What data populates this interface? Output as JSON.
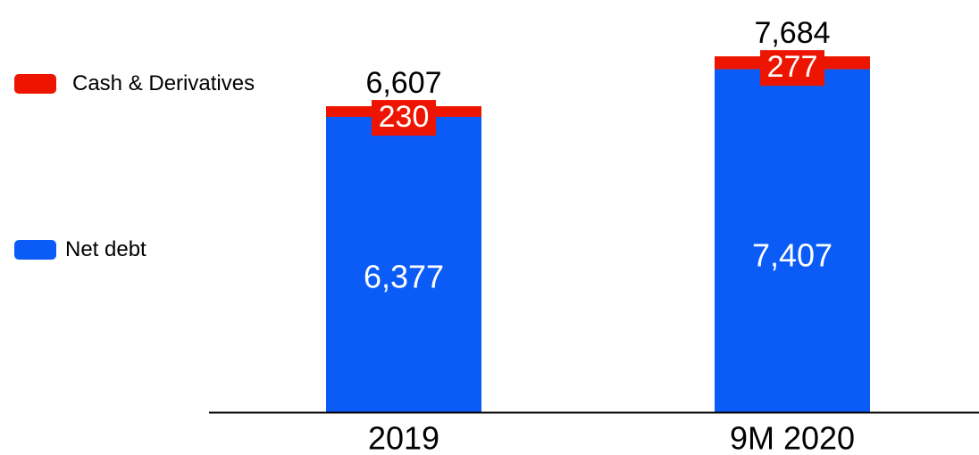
{
  "colors": {
    "cash": "#ee1500",
    "net_debt": "#0b5cf7",
    "axis": "#000000",
    "label_dark": "#000000",
    "label_light": "#ffffff"
  },
  "legend": {
    "cash_label": "Cash & Derivatives",
    "net_debt_label": "Net debt"
  },
  "chart_data": {
    "type": "bar",
    "stacked": true,
    "categories": [
      "2019",
      "9M 2020"
    ],
    "series": [
      {
        "name": "Net debt",
        "values": [
          6377,
          7407
        ],
        "labels": [
          "6,377",
          "7,407"
        ]
      },
      {
        "name": "Cash & Derivatives",
        "values": [
          230,
          277
        ],
        "labels": [
          "230",
          "277"
        ]
      }
    ],
    "totals": [
      6607,
      7684
    ],
    "total_labels": [
      "6,607",
      "7,684"
    ],
    "ylim": [
      0,
      8200
    ],
    "grid": false,
    "legend_position": "left"
  }
}
